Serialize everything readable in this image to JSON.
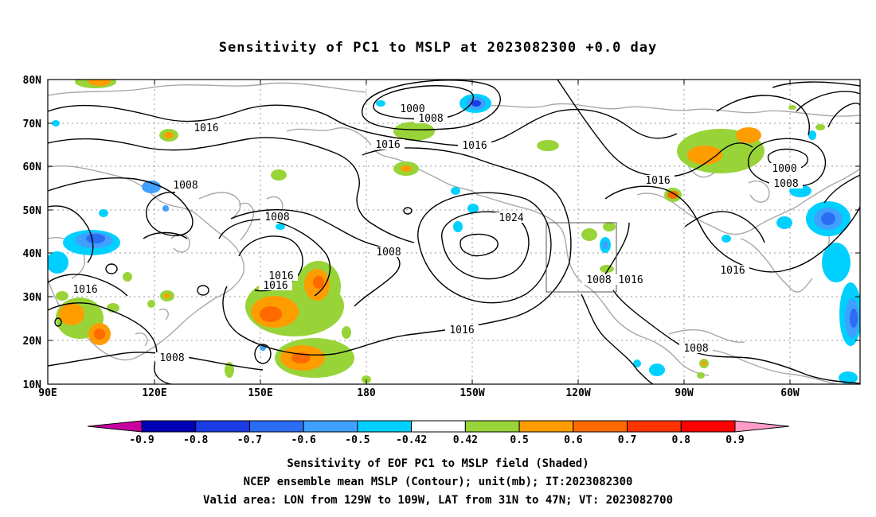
{
  "title": "Sensitivity of PC1 to MSLP at 2023082300 +0.0 day",
  "lat_labels": [
    "80N",
    "70N",
    "60N",
    "50N",
    "40N",
    "30N",
    "20N",
    "10N"
  ],
  "lon_labels": [
    "90E",
    "120E",
    "150E",
    "180",
    "150W",
    "120W",
    "90W",
    "60W"
  ],
  "contour_labels": [
    {
      "text": "1000"
    },
    {
      "text": "1008"
    },
    {
      "text": "1016"
    },
    {
      "text": "1016"
    },
    {
      "text": "1016"
    },
    {
      "text": "1008"
    },
    {
      "text": "1008"
    },
    {
      "text": "1024"
    },
    {
      "text": "1008"
    },
    {
      "text": "1016"
    },
    {
      "text": "1016"
    },
    {
      "text": "1016"
    },
    {
      "text": "1016"
    },
    {
      "text": "1008"
    },
    {
      "text": "1016"
    },
    {
      "text": "1000"
    },
    {
      "text": "1008"
    },
    {
      "text": "1016"
    },
    {
      "text": "1008"
    },
    {
      "text": "1016"
    },
    {
      "text": "1008"
    }
  ],
  "colorbar": {
    "labels": [
      "-0.9",
      "-0.8",
      "-0.7",
      "-0.6",
      "-0.5",
      "-0.42",
      "0.42",
      "0.5",
      "0.6",
      "0.7",
      "0.8",
      "0.9"
    ],
    "colors": [
      "#0000b4",
      "#1c3ce6",
      "#2a6cf2",
      "#3fa0ff",
      "#00d0ff",
      "#ffffff",
      "#98d438",
      "#ff9c00",
      "#ff6a00",
      "#ff3400",
      "#ff0000"
    ],
    "low_end_color": "#c800a0",
    "high_end_color": "#ff9cc8"
  },
  "footer": {
    "line1": "Sensitivity of EOF PC1 to MSLP field (Shaded)",
    "line2": "NCEP ensemble mean MSLP (Contour); unit(mb); IT:2023082300",
    "line3": "Valid area: LON from 129W to 109W, LAT from 31N to 47N; VT: 2023082700"
  }
}
